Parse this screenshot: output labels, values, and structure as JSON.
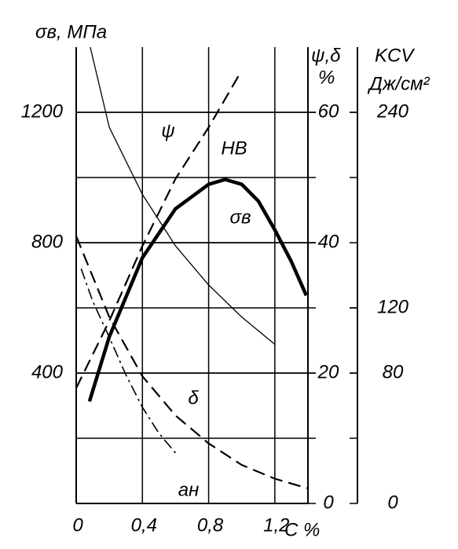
{
  "chart_data": {
    "type": "line",
    "y_label": "σв, МПа",
    "y2_label": [
      "ψ,δ",
      "%"
    ],
    "y3_label": [
      "KCV",
      "Дж/см²"
    ],
    "x_label": "C %",
    "xlim": [
      0,
      1.4
    ],
    "xticks": [
      0,
      {
        "value": 0.4,
        "label": "0,4"
      },
      {
        "value": 0.8,
        "label": "0,8"
      },
      {
        "value": 1.2,
        "label": "1,2"
      }
    ],
    "ylim": [
      0,
      1400
    ],
    "yticks": [
      400,
      800,
      1200
    ],
    "y2lim": [
      0,
      70
    ],
    "y2ticks": [
      0,
      20,
      40,
      60
    ],
    "y3lim": [
      0,
      280
    ],
    "y3ticks": [
      0,
      80,
      120,
      240
    ],
    "grid": true,
    "series": [
      {
        "name": "σв",
        "axis": "y",
        "style": "thick",
        "x": [
          0.08,
          0.2,
          0.4,
          0.6,
          0.8,
          0.9,
          1.0,
          1.1,
          1.2,
          1.3,
          1.39
        ],
        "values": [
          313,
          511,
          754,
          904,
          979,
          994,
          979,
          928,
          839,
          742,
          638
        ]
      },
      {
        "name": "HB",
        "axis": "y",
        "style": "dashed",
        "x": [
          0,
          0.2,
          0.4,
          0.6,
          0.8,
          0.98
        ],
        "values": [
          354,
          560,
          790,
          996,
          1154,
          1311
        ]
      },
      {
        "name": "ψ",
        "axis": "y2",
        "style": "thin",
        "x": [
          0.085,
          0.2,
          0.4,
          0.6,
          0.8,
          1.0,
          1.2
        ],
        "values": [
          70,
          57.7,
          47.4,
          39.5,
          33.5,
          28.6,
          24.4
        ]
      },
      {
        "name": "δ",
        "axis": "y2",
        "style": "dashed",
        "x": [
          0,
          0.2,
          0.4,
          0.6,
          0.8,
          1.0,
          1.2,
          1.4
        ],
        "values": [
          41,
          28.6,
          19.5,
          13.5,
          9.2,
          5.9,
          3.8,
          2.3
        ]
      },
      {
        "name": "aн",
        "axis": "y3",
        "style": "dashdot",
        "x": [
          0.03,
          0.1,
          0.2,
          0.3,
          0.4,
          0.5,
          0.6
        ],
        "values": [
          144,
          124,
          102,
          79,
          59,
          43,
          31
        ]
      }
    ]
  }
}
